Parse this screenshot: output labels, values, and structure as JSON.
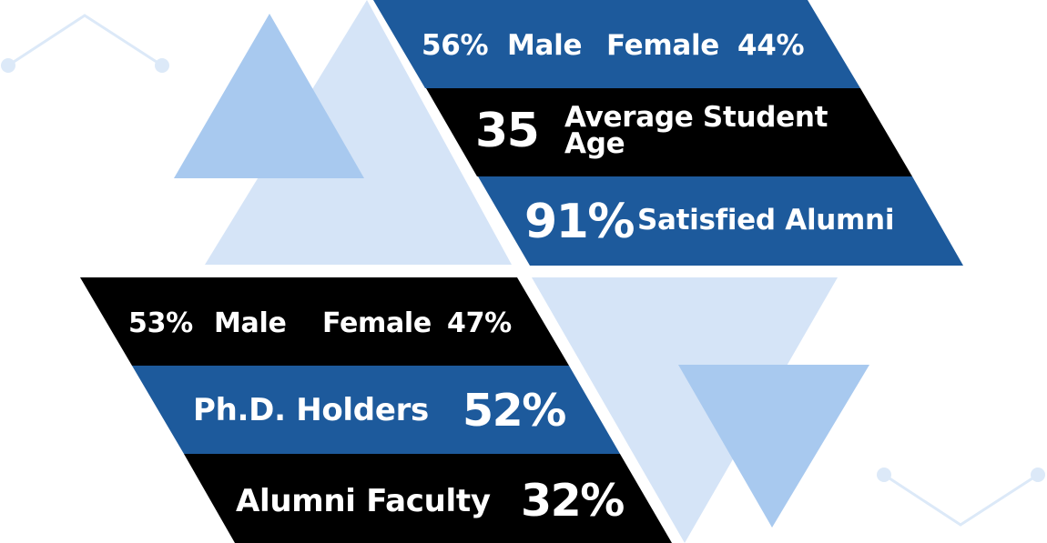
{
  "colors": {
    "blue": "#1d5a9c",
    "black": "#000000",
    "light_blue": "#d5e4f7",
    "mid_blue": "#a8c9ef",
    "accent_line": "#dce9f8",
    "text": "#ffffff"
  },
  "top_panel": {
    "gender": {
      "male_value": "56%",
      "male_label": "Male",
      "female_label": "Female",
      "female_value": "44%"
    },
    "age": {
      "value": "35",
      "label": "Average Student Age"
    },
    "satisfaction": {
      "value": "91%",
      "label": "Satisfied Alumni"
    }
  },
  "bottom_panel": {
    "gender": {
      "male_value": "53%",
      "male_label": "Male",
      "female_label": "Female",
      "female_value": "47%"
    },
    "phd": {
      "label": "Ph.D. Holders",
      "value": "52%"
    },
    "alumni_faculty": {
      "label": "Alumni Faculty",
      "value": "32%"
    }
  }
}
